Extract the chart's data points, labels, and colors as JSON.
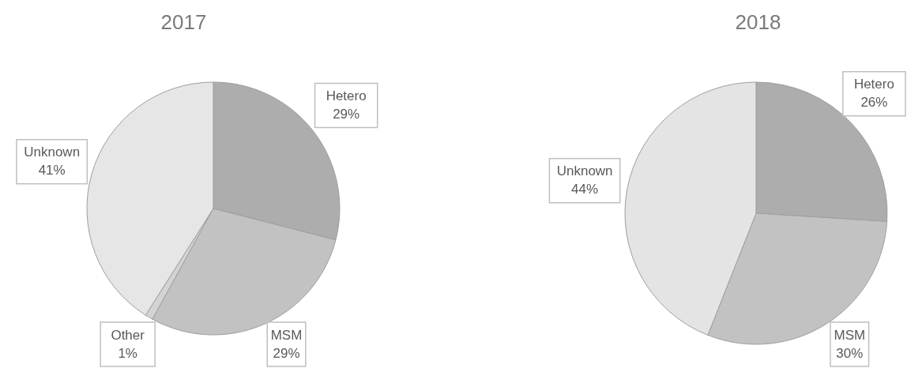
{
  "chart_data": [
    {
      "type": "pie",
      "title": "2017",
      "categories": [
        "Hetero",
        "MSM",
        "Other",
        "Unknown"
      ],
      "values": [
        29,
        29,
        1,
        41
      ],
      "value_labels": [
        "29%",
        "29%",
        "1%",
        "41%"
      ],
      "colors": [
        "#adadad",
        "#c2c2c2",
        "#d3d3d3",
        "#e6e6e6"
      ]
    },
    {
      "type": "pie",
      "title": "2018",
      "categories": [
        "Hetero",
        "MSM",
        "Unknown"
      ],
      "values": [
        26,
        30,
        44
      ],
      "value_labels": [
        "26%",
        "30%",
        "44%"
      ],
      "colors": [
        "#adadad",
        "#c2c2c2",
        "#e4e4e4"
      ]
    }
  ]
}
